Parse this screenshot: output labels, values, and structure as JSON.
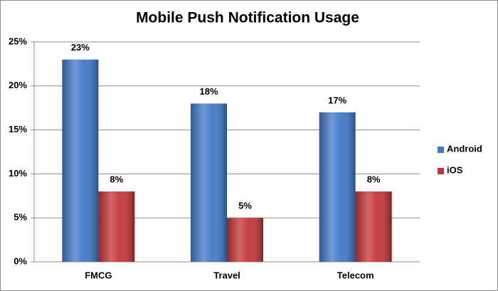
{
  "chart_data": {
    "type": "bar",
    "title": "Mobile Push Notification Usage",
    "categories": [
      "FMCG",
      "Travel",
      "Telecom"
    ],
    "series": [
      {
        "name": "Android",
        "color": "#3f78c8",
        "values": [
          23,
          18,
          17
        ],
        "value_labels": [
          "23%",
          "18%",
          "17%"
        ]
      },
      {
        "name": "iOS",
        "color": "#c43434",
        "values": [
          8,
          5,
          8
        ],
        "value_labels": [
          "8%",
          "5%",
          "8%"
        ]
      }
    ],
    "ylim": [
      0,
      25
    ],
    "yticks": [
      {
        "value": 0,
        "label": "0%"
      },
      {
        "value": 5,
        "label": "5%"
      },
      {
        "value": 10,
        "label": "10%"
      },
      {
        "value": 15,
        "label": "15%"
      },
      {
        "value": 20,
        "label": "20%"
      },
      {
        "value": 25,
        "label": "25%"
      }
    ],
    "grid": true,
    "legend": "right"
  }
}
